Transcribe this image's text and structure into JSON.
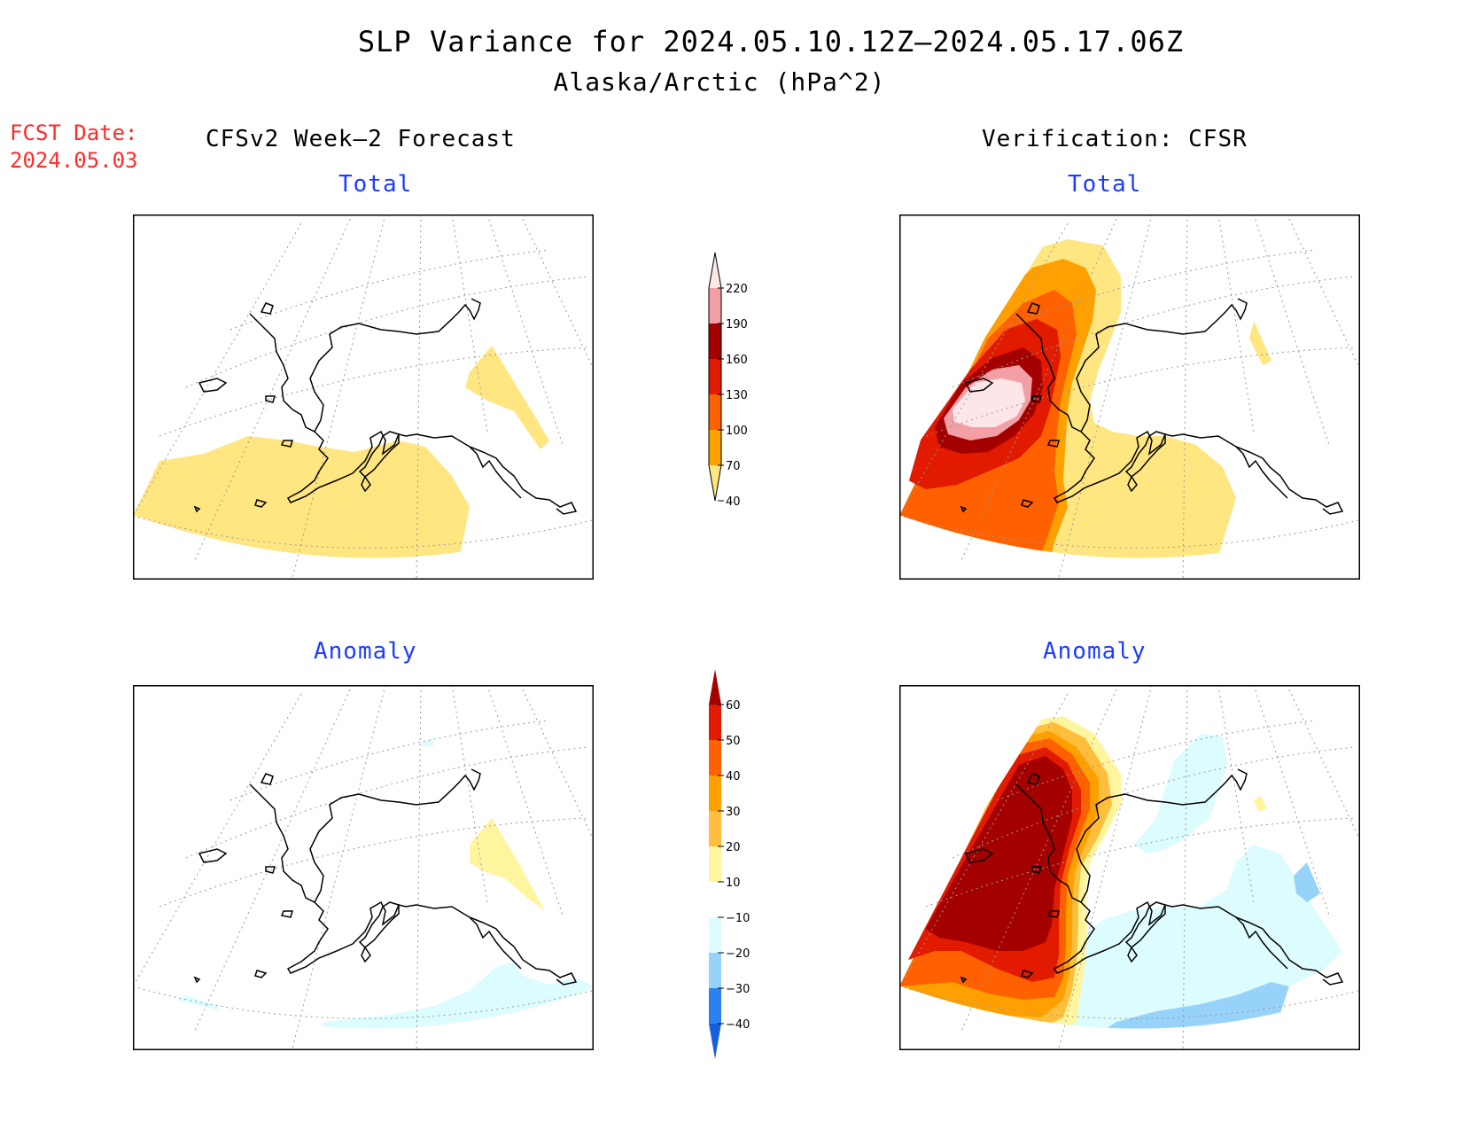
{
  "title": {
    "line1": "SLP Variance for 2024.05.10.12Z–2024.05.17.06Z",
    "line2": "Alaska/Arctic (hPa^2)"
  },
  "fcst_date": {
    "label": "FCST Date:",
    "value": "2024.05.03"
  },
  "columns": {
    "left": "CFSv2 Week–2 Forecast",
    "right": "Verification: CFSR"
  },
  "panels": {
    "forecast_total": {
      "label": "Total"
    },
    "verification_total": {
      "label": "Total"
    },
    "forecast_anomaly": {
      "label": "Anomaly"
    },
    "verification_anomaly": {
      "label": "Anomaly"
    }
  },
  "total_colorbar": {
    "labels": [
      "40",
      "70",
      "100",
      "130",
      "160",
      "190",
      "220"
    ],
    "colors": [
      "#ffe680",
      "#ffa000",
      "#ff6000",
      "#e11a00",
      "#a50000",
      "#f2a0a6",
      "#fde6e8"
    ]
  },
  "anomaly_colorbar": {
    "labels": [
      "−40",
      "−30",
      "−20",
      "−10",
      "10",
      "20",
      "30",
      "40",
      "50",
      "60"
    ],
    "colors": [
      "#1660dc",
      "#2a82f0",
      "#96d2fa",
      "#dcfcfe",
      "#ffffff",
      "#fff59f",
      "#ffbe3c",
      "#ffa000",
      "#ff6000",
      "#e11a00",
      "#a50000"
    ]
  }
}
